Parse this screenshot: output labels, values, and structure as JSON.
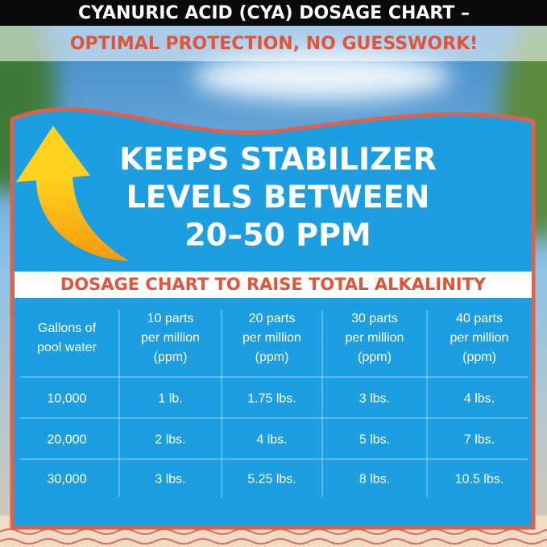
{
  "header": {
    "title_line1": "CYANURIC ACID (CYA) DOSAGE CHART –",
    "title_line2": "OPTIMAL PROTECTION, NO GUESSWORK!"
  },
  "panel": {
    "headline": [
      "KEEPS STABILIZER",
      "LEVELS BETWEEN",
      "20–50 PPM"
    ]
  },
  "table": {
    "heading": "DOSAGE CHART TO RAISE TOTAL ALKALINITY",
    "columns": [
      [
        "Gallons of",
        "pool water"
      ],
      [
        "10 parts",
        "per million",
        "(ppm)"
      ],
      [
        "20 parts",
        "per million",
        "(ppm)"
      ],
      [
        "30 parts",
        "per million",
        "(ppm)"
      ],
      [
        "40 parts",
        "per million",
        "(ppm)"
      ]
    ],
    "rows": [
      [
        "10,000",
        "1 lb.",
        "1.75 lbs.",
        "3 lbs.",
        "4 lbs."
      ],
      [
        "20,000",
        "2 lbs.",
        "4 lbs.",
        "5 lbs.",
        "7 lbs."
      ],
      [
        "30,000",
        "3 lbs.",
        "5.25 lbs.",
        "8 lbs.",
        "10.5 lbs."
      ]
    ]
  }
}
